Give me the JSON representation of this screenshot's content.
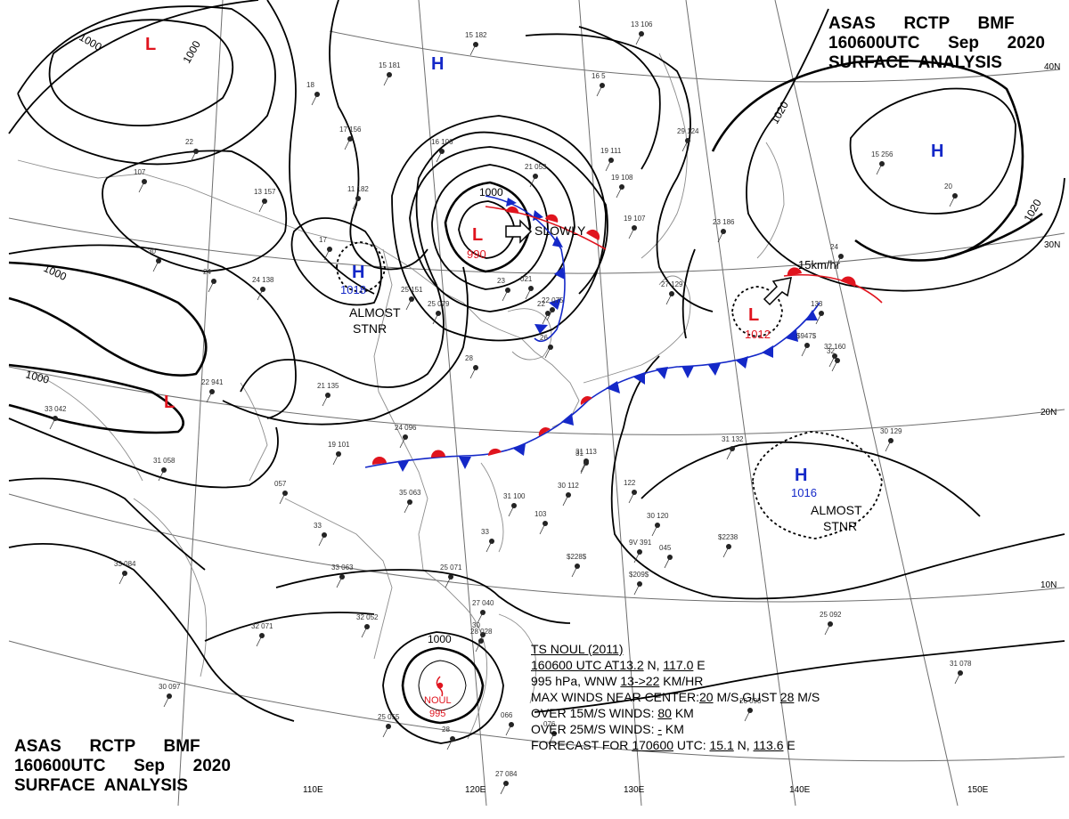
{
  "header": {
    "line1": "ASAS      RCTP      BMF",
    "line2": "160600UTC      Sep      2020",
    "line3": "SURFACE  ANALYSIS"
  },
  "footer": {
    "line1": "ASAS      RCTP      BMF",
    "line2": "160600UTC      Sep      2020",
    "line3": "SURFACE  ANALYSIS"
  },
  "longitude_labels": [
    "110E",
    "120E",
    "130E",
    "140E",
    "150E"
  ],
  "latitude_labels": [
    "40N",
    "30N",
    "20N",
    "10N"
  ],
  "isobar_labels": {
    "nw_1000_a": "1000",
    "nw_1000_b": "1000",
    "w_1000_a": "1000",
    "w_1000_b": "1000",
    "low_center_1000": "1000",
    "ne_1020_a": "1020",
    "ne_1020_b": "1020",
    "noul_1000": "1000"
  },
  "pressure_centers": {
    "low_nw": "L",
    "high_north": "H",
    "low_main": "L",
    "low_main_value": "990",
    "high_west": "H",
    "high_west_value": "1018",
    "low_west": "L",
    "high_ne": "H",
    "low_east": "L",
    "low_east_value": "1012",
    "high_se": "H",
    "high_se_value": "1016",
    "noul_name": "NOUL",
    "noul_value": "995"
  },
  "annotations": {
    "slowly": "SLOWLY",
    "almost_stnr_west_1": "ALMOST",
    "almost_stnr_west_2": "STNR",
    "speed_15": "15km/hr",
    "almost_stnr_se_1": "ALMOST",
    "almost_stnr_se_2": "STNR"
  },
  "typhoon_bulletin": {
    "line1": "TS  NOUL  (2011)",
    "line2a": "160600 UTC  AT",
    "line2b": "13.2",
    "line2c": " N, ",
    "line2d": "117.0",
    "line2e": " E",
    "line3a": "995 hPa, WNW  ",
    "line3b": "13->22",
    "line3c": " KM/HR",
    "line4a": "MAX WINDS NEAR CENTER:",
    "line4b": "20",
    "line4c": " M/S,GUST ",
    "line4d": "28",
    "line4e": " M/S",
    "line5a": "OVER 15M/S WINDS: ",
    "line5b": "80",
    "line5c": " KM",
    "line6a": "OVER 25M/S WINDS: ",
    "line6b": "-",
    "line6c": " KM",
    "line7a": "FORECAST FOR ",
    "line7b": "170600",
    "line7c": " UTC: ",
    "line7d": "15.1",
    "line7e": " N, ",
    "line7f": "113.6",
    "line7g": " E"
  },
  "station_labels": [
    "15 182",
    "15 181",
    "16 5",
    "13 106",
    "18",
    "17 156",
    "16 106",
    "21 053",
    "19 111",
    "19 108",
    "29 124",
    "24",
    "22",
    "107",
    "13 157",
    "11 182",
    "17",
    "19 107",
    "23 186",
    "24",
    "33",
    "30",
    "24 138",
    "25 151",
    "25 079",
    "22",
    "26",
    "28",
    "23",
    "021",
    "22 075",
    "27 129",
    "32",
    "33",
    "31",
    "30 120",
    "122",
    "31 100",
    "103",
    "9V 391",
    "045",
    "35 063",
    "33 063",
    "25 071",
    "33 084",
    "32 071",
    "32 052",
    "27 040",
    "30",
    "28 028",
    "30 097",
    "31 058",
    "057",
    "33 042",
    "22 941",
    "21 135",
    "24 096",
    "19 101",
    "31 113",
    "30 129",
    "31 132",
    "30 112",
    "25 092",
    "31 078",
    "26 093",
    "25 055",
    "28",
    "27 084",
    "066",
    "076",
    "15 256",
    "20",
    "133",
    "32 160",
    "$2238",
    "$228$",
    "$209$",
    "$947$"
  ],
  "colors": {
    "isobar": "#000000",
    "low": "#e0141e",
    "high": "#1428c8",
    "warm_front": "#e0141e",
    "cold_front": "#1428c8",
    "grid": "#6e6e6e",
    "coast": "#8c8c8c"
  }
}
